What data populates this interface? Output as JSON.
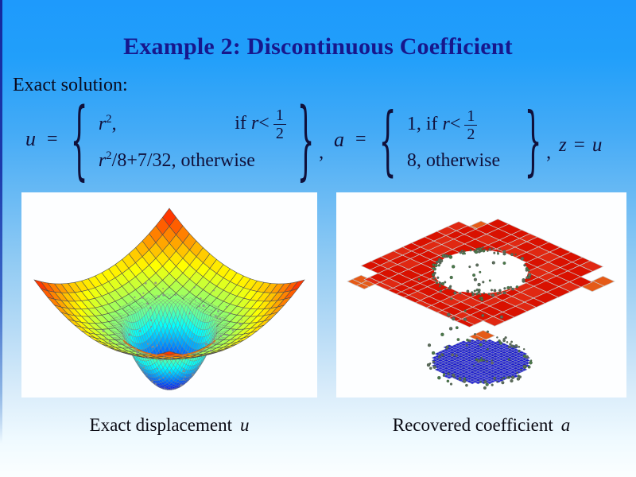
{
  "title": "Example 2: Discontinuous Coefficient",
  "exact_solution_label": "Exact solution:",
  "formulas": {
    "u": {
      "lhs": "u",
      "eq": "=",
      "lbrace": "{",
      "rbrace": "}",
      "row1_base": "r",
      "row1_sup": "2",
      "row1_comma": ",",
      "row1_if": "if ",
      "row1_var": "r",
      "row1_lt": "<",
      "frac_num": "1",
      "frac_den": "2",
      "row2_base": "r",
      "row2_sup": "2",
      "row2_rest": "/8+7/32,",
      "row2_otherwise": " otherwise",
      "trailing": ","
    },
    "a": {
      "lhs": "a",
      "eq": "=",
      "lbrace": "{",
      "rbrace": "}",
      "row1_pre": "1, if ",
      "row1_var": "r",
      "row1_lt": "<",
      "frac_num": "1",
      "frac_den": "2",
      "row2": "8, otherwise",
      "trailing": ","
    },
    "z": {
      "lhs": "z",
      "eq": "=",
      "rhs": "u"
    }
  },
  "captions": [
    {
      "text": "Exact displacement",
      "var": "u"
    },
    {
      "text": "Recovered coefficient",
      "var": "a"
    }
  ],
  "colors": {
    "title": "#17178c",
    "formula_text": "#10103a",
    "background_top": "#1e9afc",
    "background_bottom": "#fbfeff",
    "left_accent": "#14289e",
    "figure_background": "#fdfeff"
  },
  "chart_data": [
    {
      "id": "exact-displacement-surface",
      "type": "surface",
      "caption": "Exact displacement u",
      "function": "u(r) = r^2 if r < 1/2, else r^2/8 + 7/32",
      "domain": {
        "x": [
          -1,
          1
        ],
        "y": [
          -1,
          1
        ]
      },
      "z_range": [
        0,
        0.46875
      ],
      "colormap": "jet",
      "params": {
        "threshold": 0.5,
        "outer_scale": 0.125,
        "outer_offset": 0.21875,
        "zmax": 0.46875
      },
      "mesh": {
        "coarse_n": 20,
        "fine_n": 40,
        "fine_region_r": 0.62,
        "coarse_skip_r": 0.55
      },
      "features": [
        "dense refined mesh in central dip",
        "red corners, green bowl, blue dip bottom",
        "scattered gray refinement dots",
        "orange sliver at near rim"
      ],
      "background": "#ffffff"
    },
    {
      "id": "recovered-coefficient-plot",
      "type": "surface",
      "caption": "Recovered coefficient a",
      "description": "Upper red tiled plane (a=8) with circular hole of radius 1/2; lower blue tiled disk (a=1); scattered recovered sample points between levels",
      "values": {
        "inside": 1,
        "outside": 8,
        "radius": 0.5
      },
      "colors": {
        "outside_plane": "#d91100",
        "corner_tiles": "#e55a17",
        "inside_disk": "#1d1ccc",
        "dots": "#5d6d5d",
        "grid_lines": "#c9c9c9"
      },
      "background": "#ffffff"
    }
  ]
}
